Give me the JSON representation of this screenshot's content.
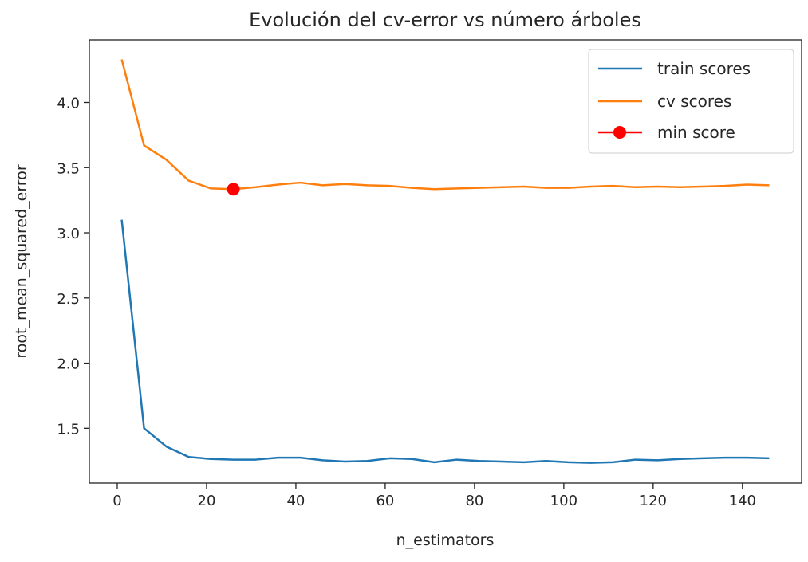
{
  "chart_data": {
    "type": "line",
    "title": "Evolución del cv-error vs número árboles",
    "xlabel": "n_estimators",
    "ylabel": "root_mean_squared_error",
    "xlim": [
      -6.25,
      153.25
    ],
    "ylim": [
      1.08,
      4.48
    ],
    "xticks": [
      0,
      20,
      40,
      60,
      80,
      100,
      120,
      140
    ],
    "yticks": [
      1.5,
      2.0,
      2.5,
      3.0,
      3.5,
      4.0
    ],
    "ytick_labels": [
      "1.5",
      "2.0",
      "2.5",
      "3.0",
      "3.5",
      "4.0"
    ],
    "grid": false,
    "legend_position": "top-right",
    "x": [
      1,
      6,
      11,
      16,
      21,
      26,
      31,
      36,
      41,
      46,
      51,
      56,
      61,
      66,
      71,
      76,
      81,
      86,
      91,
      96,
      101,
      106,
      111,
      116,
      121,
      126,
      131,
      136,
      141,
      146
    ],
    "series": [
      {
        "name": "train scores",
        "color": "#1f77b4",
        "values": [
          3.1,
          1.5,
          1.36,
          1.28,
          1.265,
          1.26,
          1.26,
          1.275,
          1.275,
          1.255,
          1.245,
          1.25,
          1.27,
          1.265,
          1.24,
          1.26,
          1.25,
          1.245,
          1.24,
          1.25,
          1.24,
          1.235,
          1.24,
          1.26,
          1.255,
          1.265,
          1.27,
          1.275,
          1.275,
          1.27
        ]
      },
      {
        "name": "cv scores",
        "color": "#ff7f0e",
        "values": [
          4.33,
          3.67,
          3.56,
          3.4,
          3.34,
          3.335,
          3.35,
          3.37,
          3.385,
          3.365,
          3.375,
          3.365,
          3.36,
          3.345,
          3.335,
          3.34,
          3.345,
          3.35,
          3.355,
          3.345,
          3.345,
          3.355,
          3.36,
          3.35,
          3.355,
          3.35,
          3.355,
          3.36,
          3.37,
          3.365
        ]
      }
    ],
    "min_point": {
      "name": "min score",
      "color": "#ff0000",
      "x": 26,
      "y": 3.335
    }
  }
}
